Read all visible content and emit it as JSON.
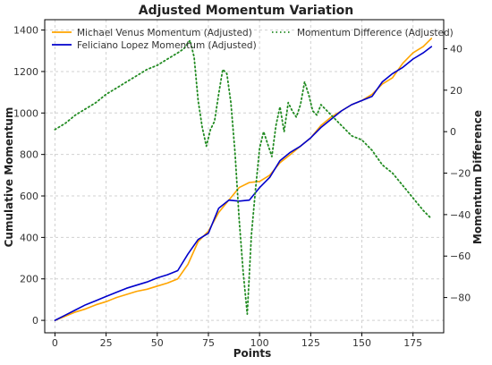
{
  "chart_data": {
    "type": "line",
    "title": "Adjusted Momentum Variation",
    "xlabel": "Points",
    "ylabel": "Cumulative Momentum",
    "y2label": "Momentum Difference",
    "xlim": [
      -5,
      190
    ],
    "ylim": [
      -60,
      1450
    ],
    "y2lim": [
      -97,
      54
    ],
    "x_ticks": [
      0,
      25,
      50,
      75,
      100,
      125,
      150,
      175
    ],
    "y_ticks": [
      0,
      200,
      400,
      600,
      800,
      1000,
      1200,
      1400
    ],
    "y2_ticks": [
      -80,
      -60,
      -40,
      -20,
      0,
      20,
      40
    ],
    "grid": true,
    "legend_placement": "top",
    "series": [
      {
        "name": "Michael Venus Momentum (Adjusted)",
        "axis": "left",
        "color": "#FFA500",
        "style": "solid",
        "x": [
          0,
          5,
          10,
          15,
          20,
          25,
          30,
          35,
          40,
          45,
          50,
          55,
          60,
          65,
          70,
          75,
          80,
          85,
          90,
          95,
          100,
          105,
          110,
          115,
          120,
          125,
          130,
          135,
          140,
          145,
          150,
          155,
          160,
          165,
          170,
          175,
          180,
          184
        ],
        "values": [
          0,
          20,
          40,
          55,
          75,
          90,
          110,
          125,
          140,
          150,
          165,
          180,
          200,
          270,
          380,
          430,
          520,
          580,
          640,
          665,
          670,
          700,
          760,
          800,
          840,
          880,
          940,
          980,
          1010,
          1040,
          1060,
          1090,
          1140,
          1170,
          1240,
          1290,
          1320,
          1360
        ]
      },
      {
        "name": "Feliciano Lopez Momentum (Adjusted)",
        "axis": "left",
        "color": "#0000CC",
        "style": "solid",
        "x": [
          0,
          5,
          10,
          15,
          20,
          25,
          30,
          35,
          40,
          45,
          50,
          55,
          60,
          65,
          70,
          75,
          80,
          85,
          90,
          95,
          100,
          105,
          110,
          115,
          120,
          125,
          130,
          135,
          140,
          145,
          150,
          155,
          160,
          165,
          170,
          175,
          180,
          184
        ],
        "values": [
          0,
          25,
          50,
          75,
          95,
          115,
          135,
          155,
          170,
          185,
          205,
          220,
          240,
          320,
          390,
          420,
          540,
          580,
          575,
          580,
          640,
          690,
          770,
          810,
          840,
          880,
          930,
          970,
          1010,
          1040,
          1060,
          1080,
          1150,
          1190,
          1220,
          1260,
          1290,
          1320
        ]
      },
      {
        "name": "Momentum Difference (Adjusted)",
        "axis": "right",
        "color": "#228B22",
        "style": "dotted",
        "x": [
          0,
          5,
          10,
          15,
          20,
          25,
          30,
          35,
          40,
          45,
          50,
          55,
          60,
          63,
          66,
          68,
          70,
          72,
          74,
          76,
          78,
          80,
          82,
          84,
          86,
          88,
          90,
          92,
          94,
          96,
          98,
          100,
          102,
          104,
          106,
          108,
          110,
          112,
          114,
          116,
          118,
          120,
          122,
          124,
          126,
          128,
          130,
          135,
          140,
          145,
          150,
          155,
          160,
          165,
          170,
          175,
          180,
          184
        ],
        "values": [
          1,
          4,
          8,
          11,
          14,
          18,
          21,
          24,
          27,
          30,
          32,
          35,
          38,
          40,
          44,
          36,
          15,
          2,
          -7,
          1,
          5,
          18,
          30,
          28,
          14,
          -10,
          -42,
          -68,
          -88,
          -50,
          -28,
          -8,
          0,
          -6,
          -12,
          3,
          12,
          0,
          14,
          10,
          7,
          13,
          24,
          18,
          10,
          8,
          13,
          8,
          3,
          -2,
          -4,
          -9,
          -16,
          -20,
          -26,
          -32,
          -38,
          -42
        ]
      }
    ]
  }
}
